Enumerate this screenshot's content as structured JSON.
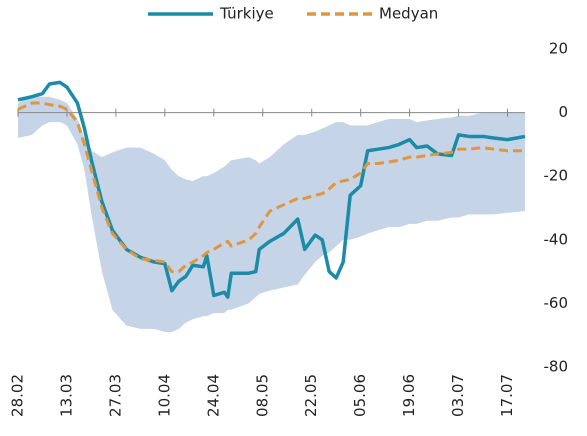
{
  "chart_data": {
    "type": "line",
    "categories": [
      "28.02",
      "03.03",
      "06.03",
      "08.03",
      "11.03",
      "13.03",
      "16.03",
      "18.03",
      "20.03",
      "23.03",
      "26.03",
      "30.03",
      "03.04",
      "07.04",
      "10.04",
      "12.04",
      "14.04",
      "16.04",
      "18.04",
      "21.04",
      "22.04",
      "24.04",
      "27.04",
      "28.04",
      "29.04",
      "04.05",
      "06.05",
      "07.05",
      "10.05",
      "14.05",
      "18.05",
      "20.05",
      "23.05",
      "25.05",
      "27.05",
      "29.05",
      "31.05",
      "02.06",
      "05.06",
      "07.06",
      "10.06",
      "13.06",
      "16.06",
      "19.06",
      "21.06",
      "24.06",
      "27.06",
      "01.07",
      "03.07",
      "06.07",
      "10.07",
      "13.07",
      "17.07",
      "22.07"
    ],
    "series": [
      {
        "name": "Türkiye",
        "color": "#1a8ca8",
        "dash": false,
        "values": [
          4,
          5,
          6,
          9,
          9.5,
          8,
          3,
          -5,
          -15,
          -28,
          -37,
          -43,
          -45.5,
          -47,
          -47.5,
          -56,
          -53,
          -51.5,
          -48,
          -48.5,
          -45,
          -57.5,
          -56.5,
          -58,
          -50.5,
          -50.5,
          -50,
          -43,
          -40.5,
          -38,
          -33.5,
          -43,
          -38.5,
          -40,
          -50,
          -52,
          -47,
          -26,
          -23,
          -12,
          -11.5,
          -11,
          -10,
          -8.5,
          -11,
          -10.5,
          -13,
          -13.5,
          -7,
          -7.5,
          -7.5,
          -8,
          -8.5,
          -7.5
        ]
      },
      {
        "name": "Medyan",
        "color": "#e0963a",
        "dash": true,
        "values": [
          1,
          3,
          3,
          2.5,
          2,
          1,
          -3,
          -10,
          -18,
          -30,
          -38,
          -43,
          -46,
          -46.5,
          -47,
          -50,
          -50,
          -48,
          -47,
          -45,
          -44,
          -43,
          -41,
          -40.5,
          -42,
          -40,
          -38,
          -36,
          -31,
          -29,
          -27,
          -27,
          -26,
          -25.5,
          -24,
          -22,
          -21.5,
          -21,
          -19,
          -16,
          -16,
          -15.5,
          -15,
          -14,
          -14,
          -13.5,
          -13,
          -12.5,
          -11.5,
          -11.5,
          -11,
          -11.5,
          -12,
          -12
        ]
      }
    ],
    "band": {
      "color": "#c5d4e6",
      "upper": [
        3,
        5,
        5,
        5,
        4,
        3,
        -2,
        -8,
        -12,
        -14,
        -12.5,
        -11,
        -11,
        -13,
        -15,
        -18,
        -20,
        -21,
        -21.5,
        -20,
        -20,
        -19,
        -17,
        -16,
        -15,
        -14,
        -15,
        -16,
        -14,
        -10,
        -7,
        -7,
        -6,
        -5,
        -4,
        -3,
        -3,
        -4,
        -4,
        -4,
        -3,
        -2,
        -2,
        -2,
        -3,
        -2.5,
        -2,
        -1.5,
        -1,
        -1,
        0,
        0,
        0,
        0
      ],
      "lower": [
        -8,
        -7,
        -4,
        -3,
        -3,
        -4,
        -10,
        -18,
        -32,
        -50,
        -62,
        -67,
        -68,
        -68,
        -69,
        -69,
        -68,
        -66,
        -65,
        -64,
        -64,
        -63,
        -63,
        -62,
        -62,
        -60,
        -58,
        -57,
        -56,
        -55,
        -54,
        -51,
        -47,
        -45,
        -44,
        -42,
        -40,
        -40,
        -39,
        -38,
        -37,
        -36,
        -36,
        -35,
        -35,
        -34,
        -34,
        -33,
        -33,
        -32,
        -32,
        -32,
        -31.5,
        -31
      ]
    },
    "xlim": [
      "28.02",
      "22.07"
    ],
    "xticks": [
      "28.02",
      "13.03",
      "27.03",
      "10.04",
      "24.04",
      "08.05",
      "22.05",
      "05.06",
      "19.06",
      "03.07",
      "17.07"
    ],
    "ylim": [
      -80,
      20
    ],
    "yticks": [
      20,
      0,
      -20,
      -40,
      -60,
      -80
    ]
  }
}
